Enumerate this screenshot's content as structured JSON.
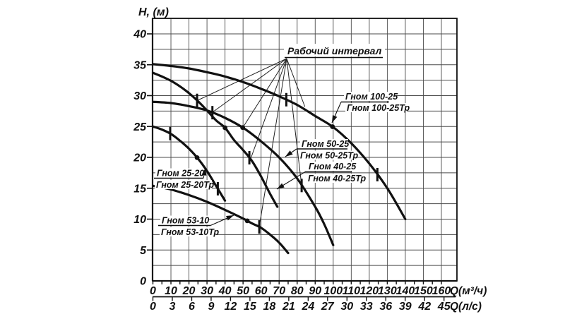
{
  "page": {
    "background": "#ffffff"
  },
  "chart_data": {
    "type": "line",
    "y_axis": {
      "label": "H, (м)",
      "ticks": [
        0,
        5,
        10,
        15,
        20,
        25,
        30,
        35,
        40
      ],
      "max": 42.5,
      "grid_step": 2.5
    },
    "x_axis_primary": {
      "label": "Q(м³/ч)",
      "ticks": [
        0,
        10,
        20,
        30,
        40,
        50,
        60,
        70,
        80,
        90,
        100,
        110,
        120,
        130,
        140,
        150,
        160
      ],
      "minor_step": 5,
      "max": 168.5
    },
    "x_axis_secondary": {
      "label": "Q(л/с)",
      "ticks": [
        0,
        3,
        6,
        9,
        12,
        15,
        18,
        21,
        24,
        27,
        30,
        33,
        36,
        39,
        42,
        45
      ]
    },
    "working_interval": {
      "label": "Рабочий интервал",
      "origin": [
        74.2,
        36.0
      ],
      "targets": [
        [
          24.5,
          29.2
        ],
        [
          33,
          27.3
        ],
        [
          49.8,
          24.8
        ],
        [
          54,
          19.6
        ],
        [
          59,
          8.8
        ],
        [
          82.5,
          15.4
        ],
        [
          84.3,
          28.2
        ]
      ]
    },
    "series": [
      {
        "id": "gnom-100-25",
        "label_line1": "Гном 100-25",
        "label_line2": "Гном 100-25Тр",
        "points": [
          [
            0,
            35.1
          ],
          [
            10,
            34.8
          ],
          [
            20,
            34.4
          ],
          [
            30,
            33.8
          ],
          [
            40,
            33.1
          ],
          [
            50,
            32.2
          ],
          [
            60,
            31.1
          ],
          [
            70,
            29.9
          ],
          [
            80,
            28.5
          ],
          [
            90,
            26.7
          ],
          [
            100,
            24.9
          ],
          [
            110,
            22.3
          ],
          [
            120,
            19.0
          ],
          [
            130,
            15.0
          ],
          [
            140,
            10.0
          ]
        ],
        "interval_ticks": [
          74,
          124.5
        ],
        "nominal_q": 99.6
      },
      {
        "id": "gnom-50-25",
        "label_line1": "Гном 50-25",
        "label_line2": "Гном 50-25Тр",
        "points": [
          [
            0,
            29.0
          ],
          [
            10,
            28.8
          ],
          [
            20,
            28.3
          ],
          [
            30,
            27.6
          ],
          [
            40,
            26.4
          ],
          [
            50,
            24.8
          ],
          [
            60,
            22.6
          ],
          [
            70,
            20.0
          ],
          [
            80,
            16.6
          ],
          [
            90,
            12.0
          ],
          [
            95,
            9.2
          ],
          [
            100,
            5.8
          ]
        ],
        "interval_ticks": [
          33,
          82.5
        ],
        "nominal_q": 49.8
      },
      {
        "id": "gnom-40-25",
        "label_line1": "Гном 40-25",
        "label_line2": "Гном 40-25Тр",
        "points": [
          [
            0,
            33.7
          ],
          [
            5,
            33.1
          ],
          [
            10,
            32.4
          ],
          [
            15,
            31.5
          ],
          [
            20,
            30.4
          ],
          [
            25,
            29.1
          ],
          [
            30,
            27.6
          ],
          [
            35,
            26.0
          ],
          [
            40,
            24.8
          ],
          [
            45,
            22.8
          ],
          [
            50,
            21.2
          ],
          [
            55,
            19.4
          ],
          [
            60,
            16.9
          ],
          [
            65,
            14.1
          ],
          [
            69,
            12.0
          ]
        ],
        "interval_ticks": [
          24.5,
          53.5
        ],
        "nominal_q": 40
      },
      {
        "id": "gnom-25-20",
        "label_line1": "Гном 25-20",
        "label_line2": "Гном 25-20Тр",
        "points": [
          [
            0,
            25.0
          ],
          [
            5,
            24.5
          ],
          [
            10,
            23.8
          ],
          [
            15,
            22.7
          ],
          [
            20,
            21.4
          ],
          [
            25,
            19.8
          ],
          [
            30,
            17.8
          ],
          [
            35,
            15.4
          ],
          [
            40,
            13.0
          ]
        ],
        "interval_ticks": [
          9.6,
          36
        ],
        "nominal_q": 24.5
      },
      {
        "id": "gnom-53-10",
        "label_line1": "Гном 53-10",
        "label_line2": "Гном 53-10Тр",
        "points": [
          [
            0,
            15.4
          ],
          [
            10,
            14.8
          ],
          [
            20,
            13.9
          ],
          [
            30,
            12.8
          ],
          [
            40,
            11.5
          ],
          [
            50,
            10.1
          ],
          [
            55,
            9.3
          ],
          [
            60,
            8.6
          ],
          [
            65,
            7.5
          ],
          [
            70,
            6.2
          ],
          [
            75,
            4.5
          ]
        ],
        "interval_ticks": [
          59
        ],
        "nominal_q": 52.3
      }
    ],
    "colors": {
      "curve": "#111111",
      "grid": "#4a4a4a",
      "frame": "#111111",
      "text": "#111111",
      "background": "#ffffff"
    }
  }
}
